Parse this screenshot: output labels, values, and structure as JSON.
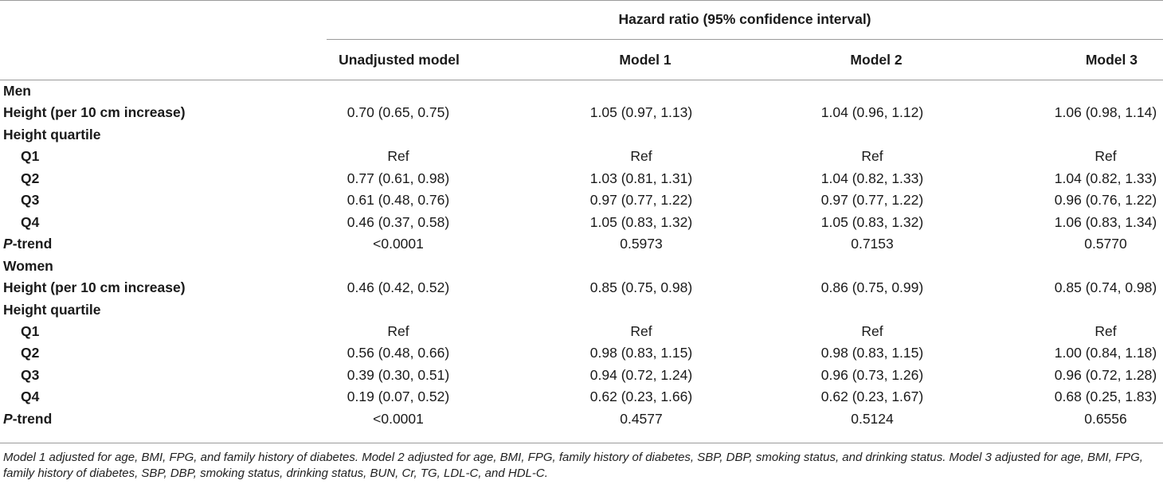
{
  "header": {
    "spanner": "Hazard ratio (95% confidence interval)",
    "columns": [
      "Unadjusted model",
      "Model 1",
      "Model 2",
      "Model 3"
    ]
  },
  "rows": [
    {
      "label": "Men",
      "indent": false,
      "values": [
        "",
        "",
        "",
        ""
      ]
    },
    {
      "label": "Height (per 10 cm increase)",
      "indent": false,
      "values": [
        "0.70 (0.65, 0.75)",
        "1.05 (0.97, 1.13)",
        "1.04 (0.96, 1.12)",
        "1.06 (0.98, 1.14)"
      ]
    },
    {
      "label": "Height quartile",
      "indent": false,
      "values": [
        "",
        "",
        "",
        ""
      ]
    },
    {
      "label": "Q1",
      "indent": true,
      "values": [
        "Ref",
        "Ref",
        "Ref",
        "Ref"
      ]
    },
    {
      "label": "Q2",
      "indent": true,
      "values": [
        "0.77 (0.61, 0.98)",
        "1.03 (0.81, 1.31)",
        "1.04 (0.82, 1.33)",
        "1.04 (0.82, 1.33)"
      ]
    },
    {
      "label": "Q3",
      "indent": true,
      "values": [
        "0.61 (0.48, 0.76)",
        "0.97 (0.77, 1.22)",
        "0.97 (0.77, 1.22)",
        "0.96 (0.76, 1.22)"
      ]
    },
    {
      "label": "Q4",
      "indent": true,
      "values": [
        "0.46 (0.37, 0.58)",
        "1.05 (0.83, 1.32)",
        "1.05 (0.83, 1.32)",
        "1.06 (0.83, 1.34)"
      ]
    },
    {
      "label_italic": "P",
      "label": "-trend",
      "indent": false,
      "values": [
        "<0.0001",
        "0.5973",
        "0.7153",
        "0.5770"
      ]
    },
    {
      "label": "Women",
      "indent": false,
      "values": [
        "",
        "",
        "",
        ""
      ]
    },
    {
      "label": "Height (per 10 cm increase)",
      "indent": false,
      "values": [
        "0.46 (0.42, 0.52)",
        "0.85 (0.75, 0.98)",
        "0.86 (0.75, 0.99)",
        "0.85 (0.74, 0.98)"
      ]
    },
    {
      "label": "Height quartile",
      "indent": false,
      "values": [
        "",
        "",
        "",
        ""
      ]
    },
    {
      "label": "Q1",
      "indent": true,
      "values": [
        "Ref",
        "Ref",
        "Ref",
        "Ref"
      ]
    },
    {
      "label": "Q2",
      "indent": true,
      "values": [
        "0.56 (0.48, 0.66)",
        "0.98 (0.83, 1.15)",
        "0.98 (0.83, 1.15)",
        "1.00 (0.84, 1.18)"
      ]
    },
    {
      "label": "Q3",
      "indent": true,
      "values": [
        "0.39 (0.30, 0.51)",
        "0.94 (0.72, 1.24)",
        "0.96 (0.73, 1.26)",
        "0.96 (0.72, 1.28)"
      ]
    },
    {
      "label": "Q4",
      "indent": true,
      "values": [
        "0.19 (0.07, 0.52)",
        "0.62 (0.23, 1.66)",
        "0.62 (0.23, 1.67)",
        "0.68 (0.25, 1.83)"
      ]
    },
    {
      "label_italic": "P",
      "label": "-trend",
      "indent": false,
      "values": [
        "<0.0001",
        "0.4577",
        "0.5124",
        "0.6556"
      ]
    }
  ],
  "footnote": "Model 1 adjusted for age, BMI, FPG, and family history of diabetes. Model 2 adjusted for age, BMI, FPG, family history of diabetes, SBP, DBP, smoking status, and drinking status. Model 3 adjusted for age, BMI, FPG, family history of diabetes, SBP, DBP, smoking status, drinking status, BUN, Cr, TG, LDL-C, and HDL-C."
}
